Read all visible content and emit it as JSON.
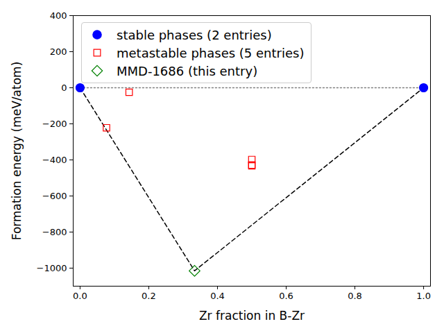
{
  "chart_data": {
    "type": "scatter",
    "xlabel": "Zr fraction in B-Zr",
    "ylabel": "Formation energy (meV/atom)",
    "xlim": [
      -0.02,
      1.02
    ],
    "ylim": [
      -1100,
      400
    ],
    "xticks": [
      {
        "value": 0,
        "label": "0.0"
      },
      {
        "value": 0.2,
        "label": "0.2"
      },
      {
        "value": 0.4,
        "label": "0.4"
      },
      {
        "value": 0.6,
        "label": "0.6"
      },
      {
        "value": 0.8,
        "label": "0.8"
      },
      {
        "value": 1,
        "label": "1.0"
      }
    ],
    "yticks": [
      -1000,
      -800,
      -600,
      -400,
      -200,
      0,
      200,
      400
    ],
    "legend": "upper left",
    "series": [
      {
        "color": "#000000",
        "type": "line",
        "line_style": "dashed",
        "x": [
          0,
          0.3333,
          1
        ],
        "values": [
          0,
          -1015,
          0
        ]
      },
      {
        "color": "#808080",
        "type": "line",
        "line_style": "dotted",
        "x": [
          0,
          1
        ],
        "values": [
          0,
          0
        ]
      },
      {
        "name": "stable phases (2 entries)",
        "color": "#0000ff",
        "type": "scatter",
        "marker": "circle",
        "x": [
          0,
          1
        ],
        "values": [
          0,
          0
        ]
      },
      {
        "name": "metastable phases (5 entries)",
        "color": "#ff0000",
        "type": "scatter",
        "marker": "square_open",
        "x": [
          0.0769,
          0.1429,
          0.5,
          0.5,
          0.5
        ],
        "values": [
          -222,
          -25,
          -398,
          -428,
          -432
        ]
      },
      {
        "name": "MMD-1686 (this entry)",
        "color": "#008000",
        "type": "scatter",
        "marker": "diamond_open",
        "x": [
          0.3333
        ],
        "values": [
          -1015
        ]
      }
    ]
  }
}
